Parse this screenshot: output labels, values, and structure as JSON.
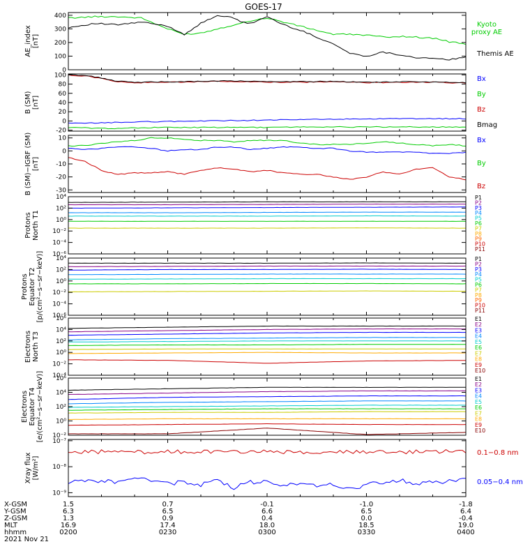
{
  "title": "GOES-17",
  "date": "2021 Nov 21",
  "footer": {
    "labels": [
      "X-GSM",
      "Y-GSM",
      "Z-GSM",
      "MLT",
      "hhmm"
    ],
    "columns": [
      {
        "values": [
          "1.5",
          "6.3",
          "1.3",
          "16.9",
          "0200"
        ]
      },
      {
        "values": [
          "0.7",
          "6.5",
          "0.9",
          "17.4",
          "0230"
        ]
      },
      {
        "values": [
          "-0.1",
          "6.6",
          "0.4",
          "18.0",
          "0300"
        ]
      },
      {
        "values": [
          "-1.0",
          "6.5",
          "0.0",
          "18.5",
          "0330"
        ]
      },
      {
        "values": [
          "-1.8",
          "6.4",
          "-0.4",
          "19.0",
          "0400"
        ]
      }
    ]
  },
  "chart_data": [
    {
      "type": "line",
      "ylabel": "AE_index\n[nT]",
      "ylim": [
        0,
        420
      ],
      "yscale": "linear",
      "yticks": [
        {
          "v": 0,
          "l": "0"
        },
        {
          "v": 100,
          "l": "100"
        },
        {
          "v": 200,
          "l": "200"
        },
        {
          "v": 300,
          "l": "300"
        },
        {
          "v": 400,
          "l": "400"
        }
      ],
      "x": [
        0,
        8,
        15,
        22,
        30,
        35,
        40,
        45,
        50,
        52,
        55,
        60,
        65,
        70,
        75,
        80,
        85,
        90,
        95,
        100,
        105,
        110,
        112,
        115,
        120
      ],
      "series": [
        {
          "name": "Kyoto\nproxy AE",
          "color": "#00cc00",
          "values": [
            380,
            390,
            390,
            380,
            300,
            260,
            270,
            300,
            330,
            340,
            360,
            380,
            350,
            320,
            290,
            260,
            260,
            255,
            240,
            245,
            240,
            230,
            225,
            205,
            190
          ]
        },
        {
          "name": "Themis AE",
          "color": "#000000",
          "values": [
            310,
            340,
            330,
            350,
            320,
            260,
            340,
            400,
            380,
            350,
            340,
            390,
            330,
            290,
            240,
            190,
            120,
            100,
            130,
            110,
            90,
            80,
            80,
            75,
            90
          ]
        }
      ]
    },
    {
      "type": "line",
      "ylabel": "B (SM)\n[nT]",
      "ylim": [
        -22,
        102
      ],
      "yscale": "linear",
      "yticks": [
        {
          "v": -20,
          "l": "-20"
        },
        {
          "v": 0,
          "l": "0"
        },
        {
          "v": 20,
          "l": "20"
        },
        {
          "v": 40,
          "l": "40"
        },
        {
          "v": 60,
          "l": "60"
        },
        {
          "v": 80,
          "l": "80"
        },
        {
          "v": 100,
          "l": "100"
        }
      ],
      "x": [
        0,
        5,
        10,
        15,
        20,
        30,
        40,
        50,
        60,
        70,
        80,
        90,
        100,
        110,
        120
      ],
      "series": [
        {
          "name": "Bx",
          "color": "#0000ff",
          "values": [
            -5,
            -5,
            -4,
            -3,
            -2,
            -1,
            0,
            1,
            2,
            3,
            4,
            4,
            5,
            5,
            5
          ]
        },
        {
          "name": "By",
          "color": "#00cc00",
          "values": [
            -14,
            -15,
            -16,
            -16,
            -15,
            -14,
            -14,
            -14,
            -14,
            -13,
            -13,
            -13,
            -13,
            -13,
            -13
          ]
        },
        {
          "name": "Bz",
          "color": "#cc0000",
          "values": [
            99,
            98,
            92,
            85,
            83,
            84,
            85,
            86,
            84,
            84,
            85,
            83,
            84,
            84,
            82
          ]
        },
        {
          "name": "Bmag",
          "color": "#000000",
          "values": [
            100,
            99,
            93,
            86,
            84,
            85,
            86,
            87,
            85,
            85,
            86,
            84,
            85,
            85,
            83
          ]
        }
      ]
    },
    {
      "type": "line",
      "ylabel": "B (SM)−IGRF (SM)\n[nT]",
      "ylim": [
        -32,
        12
      ],
      "yscale": "linear",
      "yticks": [
        {
          "v": -30,
          "l": "-30"
        },
        {
          "v": -20,
          "l": "-20"
        },
        {
          "v": -10,
          "l": "-10"
        },
        {
          "v": 0,
          "l": "0"
        },
        {
          "v": 10,
          "l": "10"
        }
      ],
      "x": [
        0,
        5,
        10,
        15,
        20,
        25,
        30,
        35,
        40,
        45,
        50,
        55,
        60,
        65,
        70,
        75,
        80,
        85,
        90,
        95,
        100,
        105,
        110,
        115,
        120
      ],
      "series": [
        {
          "name": "Bx",
          "color": "#0000ff",
          "values": [
            2,
            1,
            2,
            3,
            3,
            2,
            0,
            1,
            1,
            3,
            3,
            1,
            2,
            3,
            3,
            2,
            2,
            0,
            -1,
            -1,
            -1,
            -1,
            -2,
            -2,
            -1
          ]
        },
        {
          "name": "By",
          "color": "#00cc00",
          "values": [
            4,
            4,
            6,
            7,
            8,
            10,
            10,
            9,
            8,
            8,
            7,
            8,
            8,
            8,
            6,
            5,
            5,
            5,
            6,
            7,
            6,
            5,
            4,
            5,
            4
          ]
        },
        {
          "name": "Bz",
          "color": "#cc0000",
          "values": [
            -5,
            -8,
            -15,
            -18,
            -17,
            -17,
            -16,
            -18,
            -15,
            -13,
            -14,
            -16,
            -15,
            -17,
            -18,
            -18,
            -20,
            -22,
            -20,
            -16,
            -18,
            -14,
            -13,
            -20,
            -22
          ]
        }
      ]
    },
    {
      "type": "line",
      "ylabel": "Protons\nNorth T1",
      "ylim": [
        -6,
        4
      ],
      "yscale": "log10",
      "yticks": [
        {
          "v": -6,
          "l": "10⁻⁶"
        },
        {
          "v": -4,
          "l": "10⁻⁴"
        },
        {
          "v": -2,
          "l": "10⁻²"
        },
        {
          "v": 0,
          "l": "10⁰"
        },
        {
          "v": 2,
          "l": "10²"
        },
        {
          "v": 4,
          "l": "10⁴"
        }
      ],
      "x": [
        0,
        30,
        60,
        90,
        120
      ],
      "series": [
        {
          "name": "P1",
          "color": "#000000",
          "values": [
            3.0,
            3.05,
            3.1,
            3.1,
            3.1
          ]
        },
        {
          "name": "P2",
          "color": "#880088",
          "values": [
            2.6,
            2.6,
            2.65,
            2.7,
            2.7
          ]
        },
        {
          "name": "P3",
          "color": "#0000ff",
          "values": [
            2.0,
            2.05,
            2.1,
            2.15,
            2.2
          ]
        },
        {
          "name": "P4",
          "color": "#0088ff",
          "values": [
            1.2,
            1.2,
            1.25,
            1.3,
            1.3
          ]
        },
        {
          "name": "P5",
          "color": "#00cccc",
          "values": [
            0.6,
            0.6,
            0.6,
            0.65,
            0.6
          ]
        },
        {
          "name": "P6",
          "color": "#00cc00",
          "values": [
            -0.3,
            -0.3,
            -0.3,
            -0.3,
            -0.3
          ]
        },
        {
          "name": "P7",
          "color": "#cccc00",
          "values": [
            -1.5,
            -1.5,
            -1.5,
            -1.45,
            -1.5
          ]
        },
        {
          "name": "P8",
          "color": "#ffaa00"
        },
        {
          "name": "P9",
          "color": "#ff6600"
        },
        {
          "name": "P10",
          "color": "#cc0000"
        },
        {
          "name": "P11",
          "color": "#880000"
        }
      ]
    },
    {
      "type": "line",
      "ylabel": "Protons\nEquator T2\n[p/(cm²−s−sr−keV)]",
      "ylim": [
        -6,
        4
      ],
      "yscale": "log10",
      "yticks": [
        {
          "v": -6,
          "l": "10⁻⁶"
        },
        {
          "v": -4,
          "l": "10⁻⁴"
        },
        {
          "v": -2,
          "l": "10⁻²"
        },
        {
          "v": 0,
          "l": "10⁰"
        },
        {
          "v": 2,
          "l": "10²"
        },
        {
          "v": 4,
          "l": "10⁴"
        }
      ],
      "x": [
        0,
        30,
        60,
        90,
        120
      ],
      "series": [
        {
          "name": "P1",
          "color": "#000000",
          "values": [
            3.1,
            3.1,
            3.1,
            3.15,
            3.1
          ]
        },
        {
          "name": "P2",
          "color": "#880088",
          "values": [
            2.5,
            2.55,
            2.6,
            2.6,
            2.6
          ]
        },
        {
          "name": "P3",
          "color": "#0000ff",
          "values": [
            1.9,
            2.0,
            2.0,
            2.05,
            2.0
          ]
        },
        {
          "name": "P4",
          "color": "#0088ff",
          "values": [
            1.1,
            1.15,
            1.2,
            1.2,
            1.2
          ]
        },
        {
          "name": "P5",
          "color": "#00cccc",
          "values": [
            0.3,
            0.35,
            0.4,
            0.4,
            0.4
          ]
        },
        {
          "name": "P6",
          "color": "#00cc00",
          "values": [
            -0.5,
            -0.5,
            -0.45,
            -0.45,
            -0.5
          ]
        },
        {
          "name": "P7",
          "color": "#cccc00",
          "values": [
            -1.9,
            -1.85,
            -1.8,
            -1.75,
            -1.8
          ]
        },
        {
          "name": "P8",
          "color": "#ffaa00"
        },
        {
          "name": "P9",
          "color": "#ff6600"
        },
        {
          "name": "P10",
          "color": "#cc0000"
        },
        {
          "name": "P11",
          "color": "#880000"
        }
      ]
    },
    {
      "type": "line",
      "ylabel": "Electrons\nNorth T3",
      "ylim": [
        -4,
        6
      ],
      "yscale": "log10",
      "yticks": [
        {
          "v": -4,
          "l": "10⁻⁴"
        },
        {
          "v": -2,
          "l": "10⁻²"
        },
        {
          "v": 0,
          "l": "10⁰"
        },
        {
          "v": 2,
          "l": "10²"
        },
        {
          "v": 4,
          "l": "10⁴"
        },
        {
          "v": 6,
          "l": "10⁶"
        }
      ],
      "x": [
        0,
        30,
        60,
        90,
        120
      ],
      "series": [
        {
          "name": "E1",
          "color": "#000000",
          "values": [
            4.2,
            4.4,
            4.6,
            4.6,
            4.6
          ]
        },
        {
          "name": "E2",
          "color": "#880088",
          "values": [
            3.6,
            3.8,
            4.0,
            4.1,
            4.1
          ]
        },
        {
          "name": "E3",
          "color": "#0000ff",
          "values": [
            3.0,
            3.2,
            3.4,
            3.5,
            3.5
          ]
        },
        {
          "name": "E4",
          "color": "#0088ff",
          "values": [
            2.2,
            2.4,
            2.5,
            2.6,
            2.6
          ]
        },
        {
          "name": "E5",
          "color": "#00cccc",
          "values": [
            1.8,
            1.9,
            2.0,
            2.0,
            2.0
          ]
        },
        {
          "name": "E6",
          "color": "#00cc00",
          "values": [
            1.2,
            1.3,
            1.3,
            1.4,
            1.4
          ]
        },
        {
          "name": "E7",
          "color": "#cccc00",
          "values": [
            0.5,
            0.6,
            0.6,
            0.6,
            0.6
          ]
        },
        {
          "name": "E8",
          "color": "#ffaa00",
          "values": [
            -0.2,
            -0.1,
            0.0,
            -0.1,
            -0.1
          ]
        },
        {
          "name": "E9",
          "color": "#cc0000",
          "values": [
            -1.3,
            -1.4,
            -1.9,
            -1.5,
            -1.4
          ]
        },
        {
          "name": "E10",
          "color": "#880000"
        }
      ]
    },
    {
      "type": "line",
      "ylabel": "Electrons\nEquator T4\n[e/(cm²−s−sr−keV)]",
      "ylim": [
        -2,
        6
      ],
      "yscale": "log10",
      "yticks": [
        {
          "v": -2,
          "l": "10⁻²"
        },
        {
          "v": 0,
          "l": "10⁰"
        },
        {
          "v": 2,
          "l": "10²"
        },
        {
          "v": 4,
          "l": "10⁴"
        },
        {
          "v": 6,
          "l": "10⁶"
        }
      ],
      "x": [
        0,
        30,
        60,
        90,
        120
      ],
      "series": [
        {
          "name": "E1",
          "color": "#000000",
          "values": [
            4.3,
            4.5,
            4.7,
            4.7,
            4.7
          ]
        },
        {
          "name": "E2",
          "color": "#880088",
          "values": [
            3.7,
            3.9,
            4.1,
            4.2,
            4.2
          ]
        },
        {
          "name": "E3",
          "color": "#0000ff",
          "values": [
            3.0,
            3.3,
            3.4,
            3.5,
            3.5
          ]
        },
        {
          "name": "E4",
          "color": "#0088ff",
          "values": [
            2.4,
            2.6,
            2.7,
            2.8,
            2.8
          ]
        },
        {
          "name": "E5",
          "color": "#00cccc",
          "values": [
            1.9,
            2.0,
            2.1,
            2.2,
            2.2
          ]
        },
        {
          "name": "E6",
          "color": "#00cc00",
          "values": [
            1.5,
            1.6,
            1.7,
            1.7,
            1.7
          ]
        },
        {
          "name": "E7",
          "color": "#cccc00",
          "values": [
            1.1,
            1.2,
            1.2,
            1.3,
            1.3
          ]
        },
        {
          "name": "E8",
          "color": "#ffaa00",
          "values": [
            0.2,
            0.3,
            0.3,
            0.3,
            0.3
          ]
        },
        {
          "name": "E9",
          "color": "#cc0000",
          "values": [
            -0.6,
            -0.5,
            -0.4,
            -0.5,
            -0.5
          ]
        },
        {
          "name": "E10",
          "color": "#880000",
          "values": [
            -1.8,
            -1.8,
            -1.0,
            -1.9,
            -1.6
          ]
        }
      ]
    },
    {
      "type": "line",
      "ylabel": "Xray flux\n[W/m²]",
      "ylim": [
        -9.15,
        -6.95
      ],
      "yscale": "log10",
      "yticks": [
        {
          "v": -9,
          "l": "10⁻⁹"
        },
        {
          "v": -8,
          "l": "10⁻⁸"
        },
        {
          "v": -7,
          "l": "10⁻⁷"
        }
      ],
      "x": [
        0,
        5,
        10,
        15,
        20,
        25,
        30,
        35,
        40,
        45,
        50,
        55,
        60,
        65,
        70,
        75,
        80,
        85,
        90,
        95,
        100,
        105,
        110,
        115,
        120
      ],
      "series": [
        {
          "name": "0.1−0.8 nm",
          "color": "#cc0000",
          "values": [
            -7.45,
            -7.43,
            -7.42,
            -7.43,
            -7.44,
            -7.42,
            -7.41,
            -7.43,
            -7.44,
            -7.42,
            -7.43,
            -7.44,
            -7.42,
            -7.43,
            -7.44,
            -7.43,
            -7.42,
            -7.44,
            -7.43,
            -7.42,
            -7.44,
            -7.43,
            -7.42,
            -7.41,
            -7.4
          ]
        },
        {
          "name": "0.05−0.4 nm",
          "color": "#0000ff",
          "values": [
            -8.6,
            -8.5,
            -8.55,
            -8.6,
            -8.45,
            -8.55,
            -8.65,
            -8.6,
            -8.7,
            -8.5,
            -8.8,
            -8.6,
            -8.55,
            -8.7,
            -8.6,
            -8.75,
            -8.65,
            -8.85,
            -8.7,
            -8.6,
            -8.5,
            -8.65,
            -8.6,
            -8.55,
            -8.45
          ]
        }
      ]
    }
  ]
}
